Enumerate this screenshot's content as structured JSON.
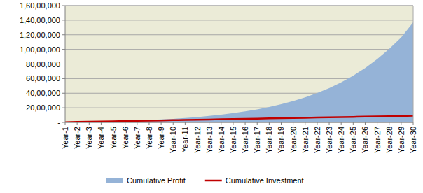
{
  "chart_data": {
    "type": "area",
    "categories": [
      "Year-1",
      "Year-2",
      "Year-3",
      "Year-4",
      "Year-5",
      "Year-6",
      "Year-7",
      "Year-8",
      "Year-9",
      "Year-10",
      "Year-11",
      "Year-12",
      "Year-13",
      "Year-14",
      "Year-15",
      "Year-16",
      "Year-17",
      "Year-18",
      "Year-19",
      "Year-20",
      "Year-21",
      "Year-22",
      "Year-23",
      "Year-24",
      "Year-25",
      "Year-26",
      "Year-27",
      "Year-28",
      "Year-29",
      "Year-30"
    ],
    "series": [
      {
        "name": "Cumulative Profit",
        "type": "area",
        "color": "#95b3d7",
        "values": [
          10000,
          30000,
          60000,
          100000,
          140000,
          190000,
          250000,
          320000,
          400000,
          490000,
          600000,
          730000,
          880000,
          1060000,
          1260000,
          1500000,
          1780000,
          2100000,
          2480000,
          2920000,
          3430000,
          4020000,
          4700000,
          5490000,
          6400000,
          7450000,
          8660000,
          10050000,
          11650000,
          13700000
        ]
      },
      {
        "name": "Cumulative Investment",
        "type": "line",
        "color": "#c00000",
        "values": [
          30000,
          60000,
          90000,
          120000,
          150000,
          180000,
          210000,
          240000,
          270000,
          300000,
          330000,
          360000,
          390000,
          420000,
          450000,
          480000,
          510000,
          540000,
          570000,
          600000,
          630000,
          660000,
          690000,
          720000,
          750000,
          780000,
          810000,
          840000,
          870000,
          900000
        ]
      }
    ],
    "ylim": [
      0,
      16000000
    ],
    "yticks": [
      {
        "value": 0,
        "label": "-"
      },
      {
        "value": 2000000,
        "label": "20,00,000"
      },
      {
        "value": 4000000,
        "label": "40,00,000"
      },
      {
        "value": 6000000,
        "label": "60,00,000"
      },
      {
        "value": 8000000,
        "label": "80,00,000"
      },
      {
        "value": 10000000,
        "label": "1,00,00,000"
      },
      {
        "value": 12000000,
        "label": "1,20,00,000"
      },
      {
        "value": 14000000,
        "label": "1,40,00,000"
      },
      {
        "value": 16000000,
        "label": "1,60,00,000"
      }
    ],
    "grid": true,
    "legend": "bottom"
  }
}
